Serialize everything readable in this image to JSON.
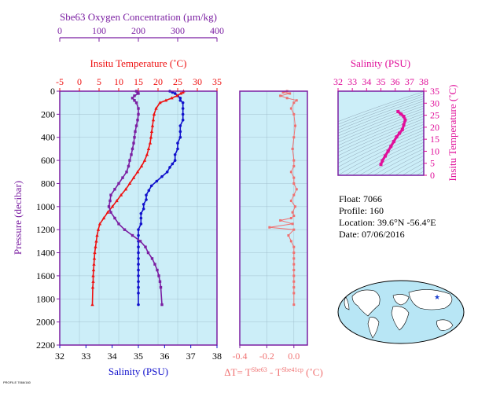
{
  "colors": {
    "oxygen": "#7b1fa2",
    "temperature": "#ee1111",
    "salinity": "#1111cc",
    "delta": "#f07070",
    "ts": "#e0109a",
    "panel_bg": "#cceef8",
    "axis": "#7b1fa2"
  },
  "chart_data": [
    {
      "type": "line",
      "name": "profile",
      "ylabel": "Pressure (decibar)",
      "ylim": [
        2200,
        0
      ],
      "yticks": [
        0,
        200,
        400,
        600,
        800,
        1000,
        1200,
        1400,
        1600,
        1800,
        2000,
        2200
      ],
      "axes": {
        "oxygen": {
          "title": "Sbe63 Oxygen Concentration (µm/kg)",
          "lim": [
            0,
            400
          ],
          "ticks": [
            0,
            100,
            200,
            300,
            400
          ]
        },
        "temperature": {
          "title": "Insitu Temperature (˚C)",
          "lim": [
            -5,
            35
          ],
          "ticks": [
            -5,
            0,
            5,
            10,
            15,
            20,
            25,
            30,
            35
          ]
        },
        "salinity": {
          "title": "Salinity (PSU)",
          "lim": [
            32,
            38
          ],
          "ticks": [
            32,
            33,
            34,
            35,
            36,
            37,
            38
          ]
        }
      },
      "series": [
        {
          "key": "salinity",
          "x": [
            36.2,
            36.3,
            36.4,
            36.5,
            36.6,
            36.6,
            36.7,
            36.7,
            36.7,
            36.7,
            36.6,
            36.6,
            36.6,
            36.5,
            36.5,
            36.4,
            36.4,
            36.3,
            36.2,
            36.1,
            35.9,
            35.7,
            35.5,
            35.4,
            35.3,
            35.3,
            35.2,
            35.2,
            35.1,
            35.1,
            35.1,
            35.0,
            35.0,
            35.0,
            35.0,
            35.0,
            35.0,
            35.0,
            35.0,
            35.0,
            35.0,
            35.0,
            35.0,
            35.0
          ],
          "y": [
            0,
            10,
            20,
            40,
            60,
            80,
            100,
            150,
            200,
            250,
            300,
            350,
            400,
            450,
            500,
            550,
            600,
            630,
            660,
            700,
            740,
            780,
            820,
            860,
            900,
            940,
            980,
            1020,
            1060,
            1100,
            1150,
            1200,
            1250,
            1300,
            1350,
            1400,
            1450,
            1500,
            1550,
            1600,
            1650,
            1700,
            1750,
            1850
          ]
        },
        {
          "key": "temperature",
          "x": [
            26.5,
            26.3,
            25.8,
            24.8,
            23.5,
            22.0,
            20.5,
            19.5,
            19.0,
            18.8,
            18.6,
            18.4,
            18.2,
            18.0,
            17.6,
            17.2,
            16.6,
            15.8,
            14.8,
            13.8,
            12.8,
            11.8,
            10.6,
            9.5,
            8.4,
            7.2,
            6.2,
            5.2,
            4.8,
            4.5,
            4.3,
            4.1,
            3.9,
            3.8,
            3.7,
            3.6,
            3.5,
            3.5,
            3.4,
            3.3
          ],
          "y": [
            0,
            10,
            20,
            40,
            60,
            80,
            100,
            150,
            200,
            250,
            300,
            350,
            400,
            450,
            500,
            550,
            600,
            650,
            700,
            750,
            800,
            850,
            900,
            950,
            1000,
            1050,
            1100,
            1150,
            1200,
            1250,
            1300,
            1350,
            1400,
            1450,
            1500,
            1550,
            1600,
            1650,
            1700,
            1850
          ]
        },
        {
          "key": "oxygen",
          "x": [
            195,
            198,
            200,
            190,
            185,
            190,
            195,
            200,
            200,
            198,
            195,
            192,
            190,
            188,
            185,
            182,
            178,
            175,
            170,
            160,
            150,
            140,
            130,
            128,
            125,
            130,
            140,
            150,
            165,
            185,
            205,
            218,
            225,
            235,
            242,
            248,
            252,
            255,
            257,
            260
          ],
          "y": [
            0,
            10,
            20,
            40,
            60,
            80,
            100,
            150,
            200,
            250,
            300,
            350,
            400,
            450,
            500,
            550,
            600,
            650,
            700,
            750,
            800,
            850,
            900,
            950,
            1000,
            1050,
            1100,
            1150,
            1200,
            1250,
            1300,
            1350,
            1400,
            1450,
            1500,
            1550,
            1600,
            1650,
            1700,
            1850
          ]
        }
      ]
    },
    {
      "type": "line",
      "name": "delta",
      "xlabel": "ΔT= T",
      "xlabel_sup1": "Sbe63",
      "xlabel_mid": " - T",
      "xlabel_sup2": "Sbe41cp",
      "xlabel_end": " (˚C)",
      "xlim": [
        -0.4,
        0.1
      ],
      "xticks": [
        -0.4,
        -0.2,
        0.0
      ],
      "ylim": [
        2200,
        0
      ],
      "x": [
        -0.05,
        -0.08,
        -0.03,
        -0.1,
        -0.05,
        0.02,
        0.0,
        -0.02,
        0.0,
        0.01,
        0.0,
        -0.01,
        0.0,
        0.0,
        -0.02,
        0.0,
        0.0,
        0.02,
        0.0,
        -0.02,
        0.01,
        -0.01,
        0.0,
        -0.02,
        -0.1,
        -0.01,
        -0.18,
        0.0,
        -0.04,
        -0.02,
        0.0,
        0.0,
        0.0,
        0.0,
        0.0,
        0.0,
        0.0,
        0.0,
        0.0,
        0.0
      ],
      "y": [
        0,
        10,
        20,
        40,
        60,
        80,
        100,
        150,
        200,
        300,
        400,
        500,
        600,
        650,
        700,
        750,
        800,
        850,
        900,
        950,
        1000,
        1050,
        1080,
        1100,
        1120,
        1150,
        1180,
        1200,
        1250,
        1300,
        1350,
        1400,
        1450,
        1500,
        1550,
        1600,
        1650,
        1700,
        1750,
        1850
      ]
    },
    {
      "type": "line",
      "name": "ts",
      "title": "Salinity (PSU)",
      "ylabel": "Insitu Temperature (˚C)",
      "xlim": [
        32,
        38
      ],
      "ylim": [
        0,
        35
      ],
      "xticks": [
        32,
        33,
        34,
        35,
        36,
        37,
        38
      ],
      "yticks": [
        0,
        5,
        10,
        15,
        20,
        25,
        30,
        35
      ],
      "x": [
        35.0,
        35.1,
        35.3,
        35.5,
        35.7,
        35.9,
        36.1,
        36.3,
        36.5,
        36.6,
        36.7,
        36.6,
        36.4,
        36.2
      ],
      "y": [
        4.5,
        6.0,
        8.0,
        10.0,
        12.0,
        14.0,
        16.0,
        17.5,
        19.0,
        21.0,
        23.0,
        24.5,
        25.5,
        26.5
      ]
    }
  ],
  "info": {
    "float": "Float:  7066",
    "profile": "Profile:  160",
    "location": "Location:  39.6°N  -56.4°E",
    "date": "Date:  07/06/2016"
  },
  "footnote": "PROFILE 7066/160",
  "map": {
    "marker_lon": -56.4,
    "marker_lat": 39.6
  }
}
